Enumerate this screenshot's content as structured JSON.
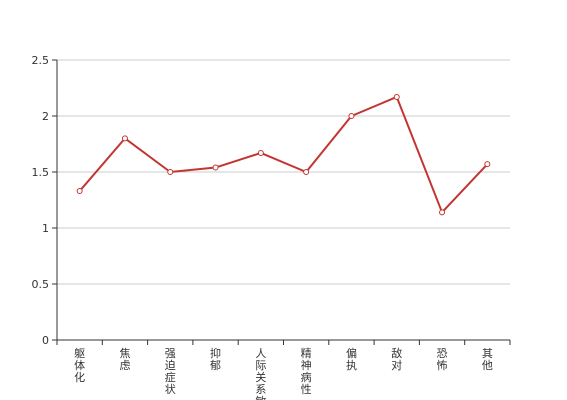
{
  "chart_data": {
    "type": "line",
    "categories": [
      "躯体化",
      "焦虑",
      "强迫症状",
      "抑郁",
      "人际关系敏感",
      "精神病性",
      "偏执",
      "敌对",
      "恐怖",
      "其他"
    ],
    "series": [
      {
        "values": [
          1.33,
          1.8,
          1.5,
          1.54,
          1.67,
          1.5,
          2.0,
          2.17,
          1.14,
          1.57
        ]
      }
    ],
    "yticks": [
      "0",
      "0.5",
      "1",
      "1.5",
      "2",
      "2.5"
    ],
    "ylim": [
      0,
      2.5
    ],
    "grid": true,
    "line_color": "#c23531",
    "marker_fill": "#ffffff"
  }
}
